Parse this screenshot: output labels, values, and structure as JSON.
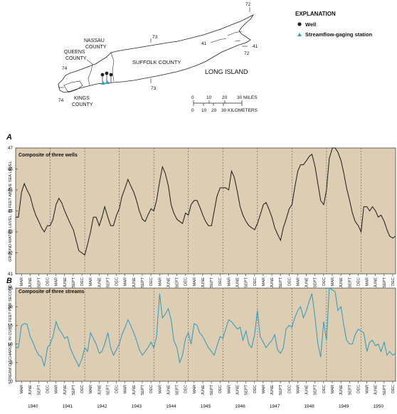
{
  "map": {
    "labels": {
      "queens": [
        "QUEENS",
        "COUNTY"
      ],
      "nassau": [
        "NASSAU",
        "COUNTY"
      ],
      "kings": [
        "KINGS",
        "COUNTY"
      ],
      "suffolk": "SUFFOLK COUNTY",
      "island": "LONG ISLAND"
    },
    "meridians": [
      "72",
      "73",
      "74",
      "41",
      "41",
      "72",
      "73",
      "74"
    ],
    "explanation": {
      "title": "EXPLANATION",
      "items": [
        {
          "label": "Well",
          "color": "#222222"
        },
        {
          "label": "Streamflow-gaging station",
          "color": "#2aa3c9"
        }
      ]
    },
    "scale": {
      "miles": [
        "0",
        "10",
        "20",
        "30 MILES"
      ],
      "km": [
        "0",
        "10",
        "20",
        "30 KILOMETERS"
      ]
    }
  },
  "chart_data": [
    {
      "type": "line",
      "panel_letter": "A",
      "annotation": "Composite of three wells",
      "ylabel": "GROUND-WATER LEVEL, IN FEET ABOVE SEA LEVEL",
      "ylim": [
        41,
        47
      ],
      "yticks": [
        41,
        42,
        43,
        44,
        45,
        46,
        47
      ],
      "xlim": [
        1940,
        1951
      ],
      "months": [
        "MAR",
        "JUNE",
        "SEPT",
        "DEC"
      ],
      "years": [
        "1940",
        "1941",
        "1942",
        "1943",
        "1944",
        "1945",
        "1946",
        "1947",
        "1948",
        "1949",
        "1950"
      ],
      "grid": "dashed vertical year boundaries",
      "line_color": "#1a1a1a",
      "background": "#dccdb3",
      "series": [
        {
          "x": [
            1940.0,
            1940.08,
            1940.17,
            1940.25,
            1940.33,
            1940.42,
            1940.5,
            1940.58,
            1940.67,
            1940.75,
            1940.83,
            1940.92,
            1941.0,
            1941.08,
            1941.17,
            1941.25,
            1941.33,
            1941.42,
            1941.5,
            1941.58,
            1941.67,
            1941.75,
            1941.83,
            1941.92,
            1942.0,
            1942.08,
            1942.17,
            1942.25,
            1942.33,
            1942.42,
            1942.5,
            1942.58,
            1942.67,
            1942.75,
            1942.83,
            1942.92,
            1943.0,
            1943.08,
            1943.17,
            1943.25,
            1943.33,
            1943.42,
            1943.5,
            1943.58,
            1943.67,
            1943.75,
            1943.83,
            1943.92,
            1944.0,
            1944.08,
            1944.17,
            1944.25,
            1944.33,
            1944.42,
            1944.5,
            1944.58,
            1944.67,
            1944.75,
            1944.83,
            1944.92,
            1945.0,
            1945.08,
            1945.17,
            1945.25,
            1945.33,
            1945.42,
            1945.5,
            1945.58,
            1945.67,
            1945.75,
            1945.83,
            1945.92,
            1946.0,
            1946.08,
            1946.17,
            1946.25,
            1946.33,
            1946.42,
            1946.5,
            1946.58,
            1946.67,
            1946.75,
            1946.83,
            1946.92,
            1947.0,
            1947.08,
            1947.17,
            1947.25,
            1947.33,
            1947.42,
            1947.5,
            1947.58,
            1947.67,
            1947.75,
            1947.83,
            1947.92,
            1948.0,
            1948.08,
            1948.17,
            1948.25,
            1948.33,
            1948.42,
            1948.5,
            1948.58,
            1948.67,
            1948.75,
            1948.83,
            1948.92,
            1949.0,
            1949.08,
            1949.17,
            1949.25,
            1949.33,
            1949.42,
            1949.5,
            1949.58,
            1949.67,
            1949.75,
            1949.83,
            1949.92,
            1950.0,
            1950.08,
            1950.17,
            1950.25,
            1950.33,
            1950.42,
            1950.5,
            1950.58,
            1950.67,
            1950.75,
            1950.83,
            1950.92,
            1951.0
          ],
          "y": [
            43.7,
            43.7,
            44.9,
            45.3,
            45.0,
            44.7,
            44.2,
            43.8,
            43.5,
            43.2,
            43.0,
            43.3,
            43.3,
            43.6,
            44.3,
            44.6,
            44.4,
            44.0,
            43.7,
            43.4,
            43.1,
            42.6,
            42.1,
            42.0,
            41.9,
            42.4,
            43.0,
            43.7,
            43.7,
            43.3,
            43.7,
            44.2,
            43.7,
            43.3,
            43.3,
            43.8,
            44.1,
            44.7,
            45.1,
            45.5,
            45.2,
            44.9,
            44.5,
            44.0,
            43.6,
            43.5,
            43.8,
            44.1,
            44.0,
            44.5,
            45.4,
            46.1,
            45.8,
            45.2,
            44.3,
            43.9,
            43.6,
            43.5,
            43.4,
            43.9,
            43.8,
            44.3,
            44.5,
            44.5,
            44.2,
            43.8,
            43.5,
            43.3,
            43.3,
            44.0,
            44.7,
            45.1,
            45.1,
            45.1,
            45.0,
            45.9,
            45.6,
            44.9,
            44.2,
            43.8,
            43.5,
            43.3,
            43.2,
            43.1,
            43.4,
            43.8,
            44.3,
            44.4,
            44.1,
            43.7,
            43.2,
            42.9,
            42.6,
            43.2,
            43.6,
            44.1,
            44.3,
            45.1,
            45.9,
            46.2,
            46.2,
            46.4,
            46.6,
            46.7,
            46.1,
            45.3,
            44.5,
            44.3,
            45.0,
            46.5,
            47.0,
            47.0,
            46.8,
            46.4,
            45.8,
            45.1,
            44.5,
            43.9,
            43.5,
            43.3,
            43.0,
            44.2,
            44.2,
            44.0,
            44.2,
            44.0,
            43.7,
            43.8,
            43.5,
            43.1,
            42.8,
            42.7,
            42.8
          ]
        }
      ]
    },
    {
      "type": "line",
      "panel_letter": "B",
      "annotation": "Composite of three streams",
      "ylabel": "STREAM DISCHARGE, IN CUBIC FEET PER SECOND",
      "ylim": [
        0,
        25
      ],
      "yticks": [
        0,
        5,
        10,
        15,
        20,
        25
      ],
      "xlim": [
        1940,
        1951
      ],
      "months": [
        "MAR",
        "JUNE",
        "SEPT",
        "DEC"
      ],
      "years": [
        "1940",
        "1941",
        "1942",
        "1943",
        "1944",
        "1945",
        "1946",
        "1947",
        "1948",
        "1949",
        "1950"
      ],
      "grid": "dashed vertical year boundaries",
      "line_color": "#2a9bc0",
      "background": "#dccdb3",
      "series": [
        {
          "x": [
            1940.0,
            1940.08,
            1940.17,
            1940.25,
            1940.33,
            1940.42,
            1940.5,
            1940.58,
            1940.67,
            1940.75,
            1940.83,
            1940.92,
            1941.0,
            1941.08,
            1941.17,
            1941.25,
            1941.33,
            1941.42,
            1941.5,
            1941.58,
            1941.67,
            1941.75,
            1941.83,
            1941.92,
            1942.0,
            1942.08,
            1942.17,
            1942.25,
            1942.33,
            1942.42,
            1942.5,
            1942.58,
            1942.67,
            1942.75,
            1942.83,
            1942.92,
            1943.0,
            1943.08,
            1943.17,
            1943.25,
            1943.33,
            1943.42,
            1943.5,
            1943.58,
            1943.67,
            1943.75,
            1943.83,
            1943.92,
            1944.0,
            1944.08,
            1944.17,
            1944.25,
            1944.33,
            1944.42,
            1944.5,
            1944.58,
            1944.67,
            1944.75,
            1944.83,
            1944.92,
            1945.0,
            1945.08,
            1945.17,
            1945.25,
            1945.33,
            1945.42,
            1945.5,
            1945.58,
            1945.67,
            1945.75,
            1945.83,
            1945.92,
            1946.0,
            1946.08,
            1946.17,
            1946.25,
            1946.33,
            1946.42,
            1946.5,
            1946.58,
            1946.67,
            1946.75,
            1946.83,
            1946.92,
            1947.0,
            1947.08,
            1947.17,
            1947.25,
            1947.33,
            1947.42,
            1947.5,
            1947.58,
            1947.67,
            1947.75,
            1947.83,
            1947.92,
            1948.0,
            1948.08,
            1948.17,
            1948.25,
            1948.33,
            1948.42,
            1948.5,
            1948.58,
            1948.67,
            1948.75,
            1948.83,
            1948.92,
            1949.0,
            1949.08,
            1949.17,
            1949.25,
            1949.33,
            1949.42,
            1949.5,
            1949.58,
            1949.67,
            1949.75,
            1949.83,
            1949.92,
            1950.0,
            1950.08,
            1950.17,
            1950.25,
            1950.33,
            1950.42,
            1950.5,
            1950.58,
            1950.67,
            1950.75,
            1950.83,
            1950.92,
            1951.0
          ],
          "y": [
            9,
            9,
            15,
            15.5,
            15.3,
            12,
            10.5,
            8.5,
            7,
            6.5,
            4,
            9,
            10,
            12,
            16,
            14,
            13,
            11.5,
            12,
            9,
            7,
            5.5,
            4,
            6,
            9,
            8,
            13,
            11.5,
            10,
            7.5,
            8,
            10,
            13,
            9,
            7,
            8.5,
            10,
            12.5,
            14.5,
            16.5,
            15,
            13,
            11,
            8.5,
            7,
            8,
            9,
            10.5,
            9,
            12,
            23.5,
            17,
            18,
            19.5,
            16.5,
            11,
            9,
            5,
            7,
            11.5,
            13,
            10,
            15.5,
            15,
            13,
            12,
            10.5,
            9,
            8,
            7,
            9.5,
            12,
            11.5,
            14,
            16.5,
            16,
            15,
            14,
            14.5,
            11,
            13.5,
            10,
            9,
            12.5,
            19,
            12,
            10.5,
            9,
            10,
            11,
            12.5,
            8.5,
            7.5,
            9,
            14,
            15,
            14.5,
            17,
            19,
            20,
            17,
            19,
            21.5,
            23.5,
            17,
            10,
            6.5,
            16,
            11,
            25,
            24.5,
            24,
            19,
            20,
            15,
            11,
            10,
            10,
            12.5,
            14,
            13.5,
            13,
            8,
            10.5,
            11,
            9.5,
            10,
            8,
            10.5,
            7,
            8,
            7,
            7.5
          ]
        }
      ]
    }
  ]
}
